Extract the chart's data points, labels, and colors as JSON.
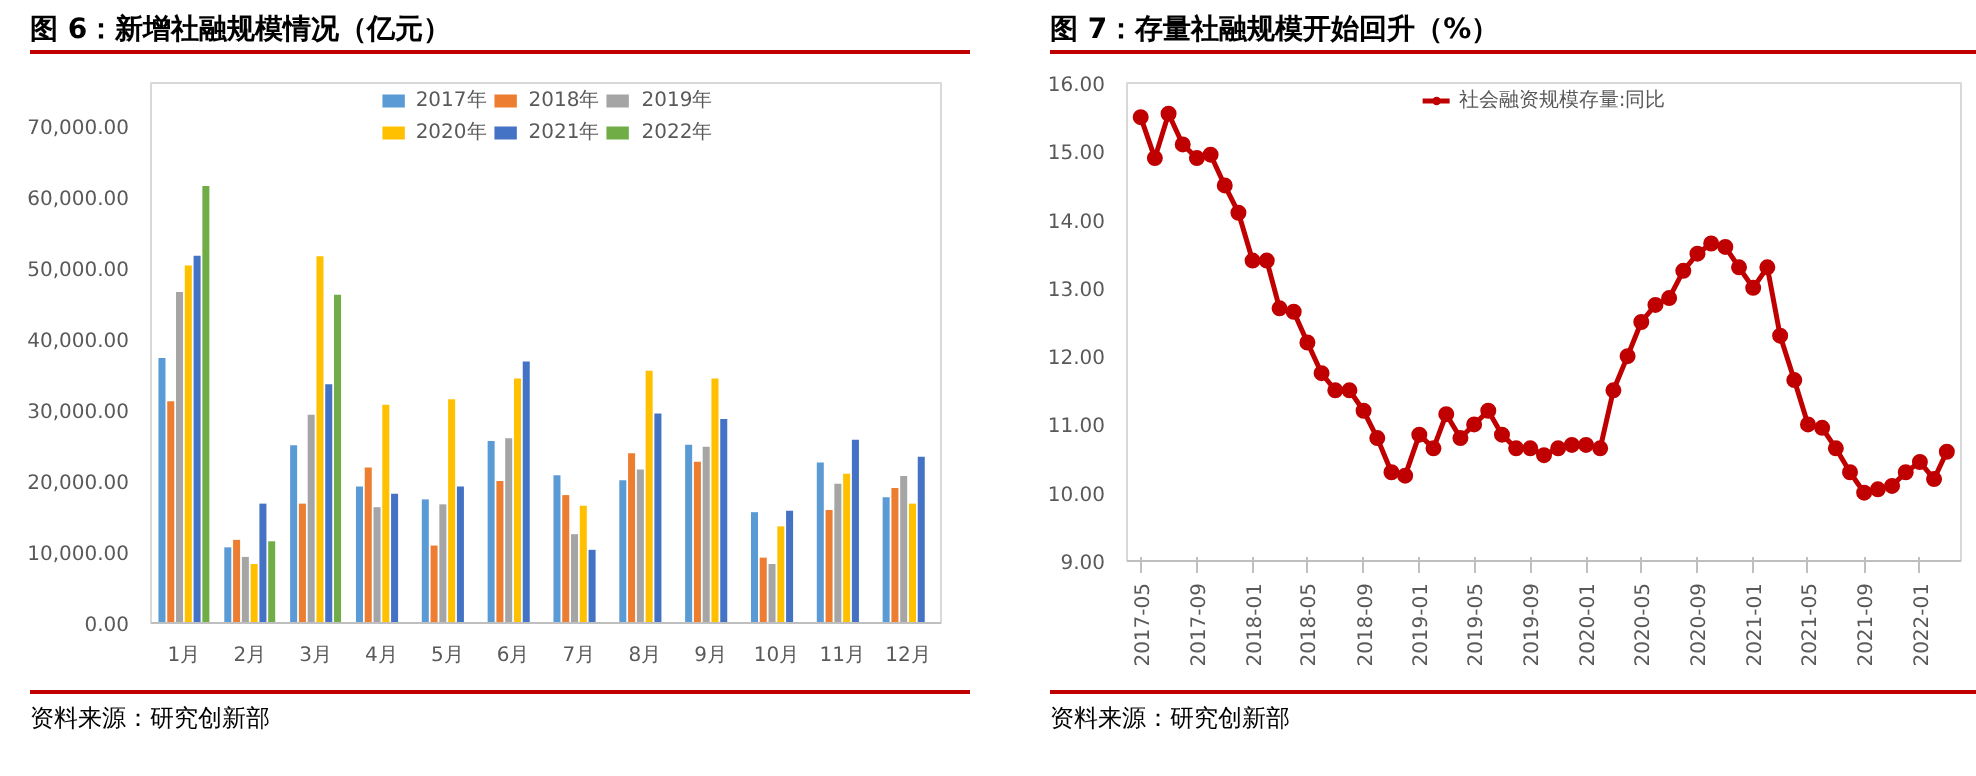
{
  "chart_data": [
    {
      "type": "bar",
      "title": "图 6：新增社融规模情况（亿元）",
      "annotations": [
        "资料来源：研究创新部"
      ],
      "categories": [
        "1月",
        "2月",
        "3月",
        "4月",
        "5月",
        "6月",
        "7月",
        "8月",
        "9月",
        "10月",
        "11月",
        "12月"
      ],
      "series": [
        {
          "name": "2017年",
          "color": "#5b9bd5",
          "values": [
            37300,
            10650,
            25000,
            19200,
            17400,
            25600,
            20800,
            20100,
            25100,
            15600,
            22600,
            17700
          ]
        },
        {
          "name": "2018年",
          "color": "#ed7d31",
          "values": [
            31200,
            11700,
            16800,
            21900,
            10900,
            20000,
            18000,
            23900,
            22700,
            9200,
            15900,
            19000
          ]
        },
        {
          "name": "2019年",
          "color": "#a5a5a5",
          "values": [
            46600,
            9300,
            29300,
            16300,
            16700,
            26000,
            12500,
            21600,
            24800,
            8300,
            19600,
            20700
          ]
        },
        {
          "name": "2020年",
          "color": "#ffc000",
          "values": [
            50300,
            8300,
            51600,
            30700,
            31500,
            34400,
            16500,
            35500,
            34400,
            13600,
            21000,
            16800
          ]
        },
        {
          "name": "2021年",
          "color": "#4472c4",
          "values": [
            51700,
            16800,
            33600,
            18200,
            19200,
            36800,
            10300,
            29500,
            28700,
            15800,
            25800,
            23400
          ]
        },
        {
          "name": "2022年",
          "color": "#70ad47",
          "values": [
            61500,
            11500,
            46200,
            null,
            null,
            null,
            null,
            null,
            null,
            null,
            null,
            null
          ]
        }
      ],
      "ylim": [
        0,
        76000
      ],
      "yticks": [
        {
          "value": 0,
          "label": "0.00"
        },
        {
          "value": 10000,
          "label": "10,000.00"
        },
        {
          "value": 20000,
          "label": "20,000.00"
        },
        {
          "value": 30000,
          "label": "30,000.00"
        },
        {
          "value": 40000,
          "label": "40,000.00"
        },
        {
          "value": 50000,
          "label": "50,000.00"
        },
        {
          "value": 60000,
          "label": "60,000.00"
        },
        {
          "value": 70000,
          "label": "70,000.00"
        }
      ],
      "grid": false,
      "legend": "top"
    },
    {
      "type": "line",
      "title": "图 7：存量社融规模开始回升（%）",
      "annotations": [
        "资料来源：研究创新部"
      ],
      "x": [
        "2017-05",
        "2017-06",
        "2017-07",
        "2017-08",
        "2017-09",
        "2017-10",
        "2017-11",
        "2017-12",
        "2018-01",
        "2018-02",
        "2018-03",
        "2018-04",
        "2018-05",
        "2018-06",
        "2018-07",
        "2018-08",
        "2018-09",
        "2018-10",
        "2018-11",
        "2018-12",
        "2019-01",
        "2019-02",
        "2019-03",
        "2019-04",
        "2019-05",
        "2019-06",
        "2019-07",
        "2019-08",
        "2019-09",
        "2019-10",
        "2019-11",
        "2019-12",
        "2020-01",
        "2020-02",
        "2020-03",
        "2020-04",
        "2020-05",
        "2020-06",
        "2020-07",
        "2020-08",
        "2020-09",
        "2020-10",
        "2020-11",
        "2020-12",
        "2021-01",
        "2021-02",
        "2021-03",
        "2021-04",
        "2021-05",
        "2021-06",
        "2021-07",
        "2021-08",
        "2021-09",
        "2021-10",
        "2021-11",
        "2021-12",
        "2022-01",
        "2022-02",
        "2022-03"
      ],
      "series": [
        {
          "name": "社会融资规模存量:同比",
          "color": "#c00000",
          "values": [
            15.5,
            14.9,
            15.55,
            15.1,
            14.9,
            14.95,
            14.5,
            14.1,
            13.4,
            13.4,
            12.7,
            12.65,
            12.2,
            11.75,
            11.5,
            11.5,
            11.2,
            10.8,
            10.3,
            10.25,
            10.85,
            10.65,
            11.15,
            10.8,
            11.0,
            11.2,
            10.85,
            10.65,
            10.65,
            10.55,
            10.65,
            10.7,
            10.7,
            10.65,
            11.5,
            12.0,
            12.5,
            12.75,
            12.85,
            13.25,
            13.5,
            13.65,
            13.6,
            13.3,
            13.0,
            13.3,
            12.3,
            11.65,
            11.0,
            10.95,
            10.65,
            10.3,
            10.0,
            10.05,
            10.1,
            10.3,
            10.45,
            10.2,
            10.6
          ]
        }
      ],
      "xlim": [
        "2017-04",
        "2022-04"
      ],
      "xticks": [
        "2017-05",
        "2017-09",
        "2018-01",
        "2018-05",
        "2018-09",
        "2019-01",
        "2019-05",
        "2019-09",
        "2020-01",
        "2020-05",
        "2020-09",
        "2021-01",
        "2021-05",
        "2021-09",
        "2022-01"
      ],
      "ylim": [
        9,
        16
      ],
      "yticks": [
        {
          "value": 9,
          "label": "9.00"
        },
        {
          "value": 10,
          "label": "10.00"
        },
        {
          "value": 11,
          "label": "11.00"
        },
        {
          "value": 12,
          "label": "12.00"
        },
        {
          "value": 13,
          "label": "13.00"
        },
        {
          "value": 14,
          "label": "14.00"
        },
        {
          "value": 15,
          "label": "15.00"
        },
        {
          "value": 16,
          "label": "16.00"
        }
      ],
      "grid": false,
      "legend": "top",
      "marker": "circle",
      "line_style": "solid"
    }
  ]
}
